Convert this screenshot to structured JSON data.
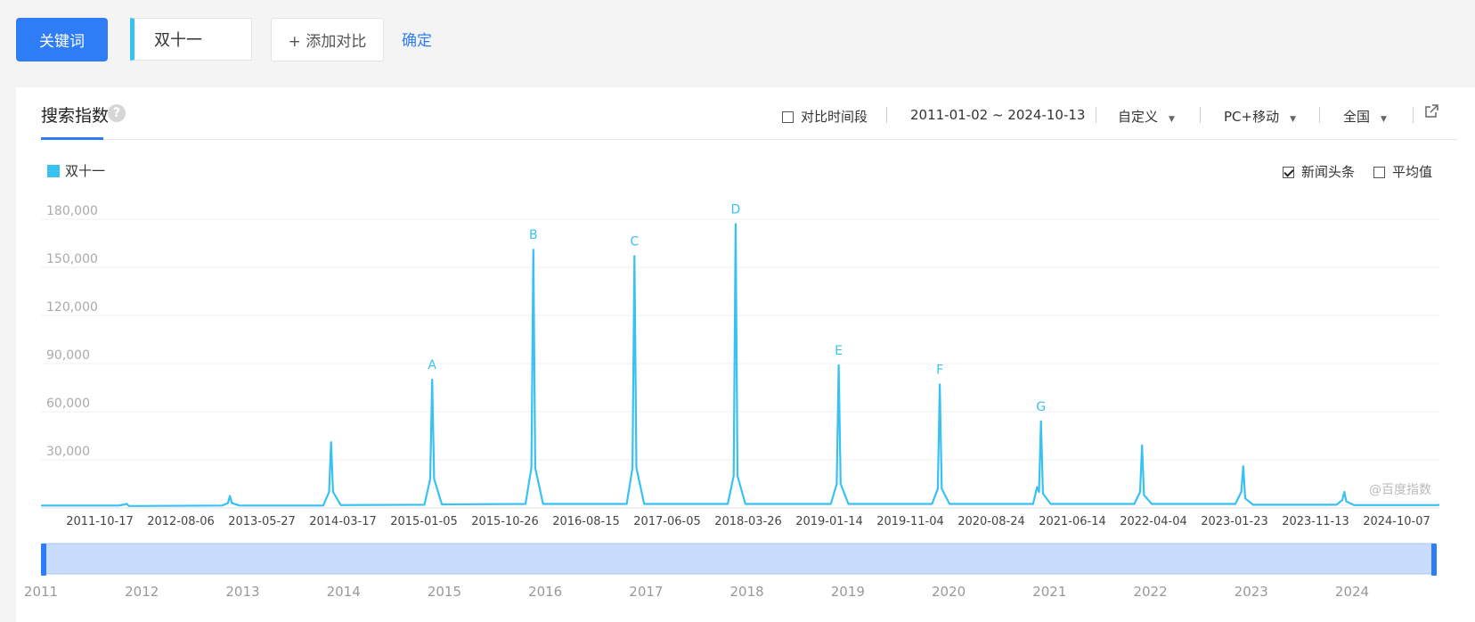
{
  "top_bar": {
    "keyword_button": "关键词",
    "keyword_value": "双十一",
    "add_compare": "+ 添加对比",
    "confirm": "确定"
  },
  "panel": {
    "tab_title": "搜索指数",
    "help_icon": "?",
    "compare_period": "对比时间段",
    "date_range": "2011-01-02 ~ 2024-10-13",
    "range_mode": "自定义",
    "device": "PC+移动",
    "region": "全国",
    "news_headlines": "新闻头条",
    "average": "平均值",
    "watermark": "@百度指数"
  },
  "colors": {
    "series": "#38c1f3",
    "accent": "#2f7df6"
  },
  "chart_data": {
    "type": "line",
    "series": [
      {
        "name": "双十一",
        "x": [
          "2011-01-02",
          "2011-10-10",
          "2011-11-07",
          "2011-11-14",
          "2011-12-12",
          "2012-10-15",
          "2012-11-05",
          "2012-11-12",
          "2012-11-19",
          "2012-12-17",
          "2013-10-14",
          "2013-11-04",
          "2013-11-11",
          "2013-11-18",
          "2013-12-16",
          "2014-10-13",
          "2014-11-03",
          "2014-11-10",
          "2014-11-17",
          "2014-12-15",
          "2015-10-12",
          "2015-11-02",
          "2015-11-09",
          "2015-11-16",
          "2015-12-14",
          "2016-10-10",
          "2016-10-31",
          "2016-11-07",
          "2016-11-14",
          "2016-12-12",
          "2017-10-09",
          "2017-10-30",
          "2017-11-06",
          "2017-11-13",
          "2017-12-11",
          "2018-10-15",
          "2018-11-05",
          "2018-11-12",
          "2018-11-19",
          "2018-12-17",
          "2019-10-14",
          "2019-11-04",
          "2019-11-11",
          "2019-11-18",
          "2019-12-16",
          "2020-10-12",
          "2020-10-26",
          "2020-11-02",
          "2020-11-09",
          "2020-11-16",
          "2020-12-14",
          "2021-10-11",
          "2021-11-01",
          "2021-11-08",
          "2021-11-15",
          "2021-12-13",
          "2022-10-10",
          "2022-10-31",
          "2022-11-07",
          "2022-11-14",
          "2022-12-12",
          "2023-10-09",
          "2023-10-30",
          "2023-11-06",
          "2023-11-13",
          "2023-12-11",
          "2024-10-07",
          "2024-10-13"
        ],
        "values": [
          1500,
          1500,
          2500,
          1200,
          1200,
          1500,
          3000,
          7500,
          3000,
          1500,
          1500,
          10000,
          41000,
          10000,
          1800,
          2000,
          18000,
          80000,
          18000,
          2200,
          2500,
          25000,
          161000,
          25000,
          2500,
          2500,
          25000,
          157000,
          25000,
          2500,
          2500,
          20000,
          177000,
          20000,
          2500,
          2500,
          15000,
          89000,
          15000,
          2500,
          2500,
          12000,
          77000,
          12000,
          2500,
          2500,
          13000,
          10000,
          54000,
          9000,
          2500,
          2500,
          10000,
          39000,
          8000,
          2500,
          2500,
          10000,
          26000,
          6000,
          2000,
          2000,
          5000,
          10000,
          4000,
          1800,
          1800,
          2000
        ]
      }
    ],
    "y_ticks": [
      "180,000",
      "150,000",
      "120,000",
      "90,000",
      "60,000",
      "30,000"
    ],
    "ylim": [
      0,
      180000
    ],
    "x_tick_labels": [
      "2011-10-17",
      "2012-08-06",
      "2013-05-27",
      "2014-03-17",
      "2015-01-05",
      "2015-10-26",
      "2016-08-15",
      "2017-06-05",
      "2018-03-26",
      "2019-01-14",
      "2019-11-04",
      "2020-08-24",
      "2021-06-14",
      "2022-04-04",
      "2023-01-23",
      "2023-11-13",
      "2024-10-07"
    ],
    "annotations": [
      {
        "label": "A",
        "date": "2014-11-10"
      },
      {
        "label": "B",
        "date": "2015-11-09"
      },
      {
        "label": "C",
        "date": "2016-11-07"
      },
      {
        "label": "D",
        "date": "2017-11-06"
      },
      {
        "label": "E",
        "date": "2018-11-12"
      },
      {
        "label": "F",
        "date": "2019-11-11"
      },
      {
        "label": "G",
        "date": "2020-11-09"
      }
    ],
    "overview_years": [
      "2011",
      "2012",
      "2013",
      "2014",
      "2015",
      "2016",
      "2017",
      "2018",
      "2019",
      "2020",
      "2021",
      "2022",
      "2023",
      "2024"
    ],
    "grid": true
  }
}
